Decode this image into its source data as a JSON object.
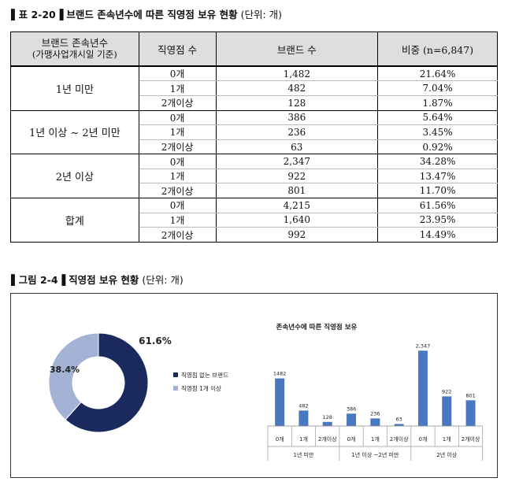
{
  "table_caption": {
    "marker": "▌표 2-20▐",
    "title": "브랜드 존속년수에 따른 직영점 보유 현황",
    "unit": "(단위: 개)"
  },
  "table": {
    "headers": {
      "group_line1": "브랜드 존속년수",
      "group_line2": "(가맹사업개시일 기준)",
      "stores": "직영점 수",
      "brands": "브랜드 수",
      "share": "비중 (n=6,847)"
    },
    "groups": [
      {
        "label": "1년 미만",
        "rows": [
          {
            "stores": "0개",
            "brands": "1,482",
            "share": "21.64%"
          },
          {
            "stores": "1개",
            "brands": "482",
            "share": "7.04%"
          },
          {
            "stores": "2개이상",
            "brands": "128",
            "share": "1.87%"
          }
        ]
      },
      {
        "label": "1년 이상 ~ 2년 미만",
        "rows": [
          {
            "stores": "0개",
            "brands": "386",
            "share": "5.64%"
          },
          {
            "stores": "1개",
            "brands": "236",
            "share": "3.45%"
          },
          {
            "stores": "2개이상",
            "brands": "63",
            "share": "0.92%"
          }
        ]
      },
      {
        "label": "2년 이상",
        "rows": [
          {
            "stores": "0개",
            "brands": "2,347",
            "share": "34.28%"
          },
          {
            "stores": "1개",
            "brands": "922",
            "share": "13.47%"
          },
          {
            "stores": "2개이상",
            "brands": "801",
            "share": "11.70%"
          }
        ]
      },
      {
        "label": "합계",
        "rows": [
          {
            "stores": "0개",
            "brands": "4,215",
            "share": "61.56%"
          },
          {
            "stores": "1개",
            "brands": "1,640",
            "share": "23.95%"
          },
          {
            "stores": "2개이상",
            "brands": "992",
            "share": "14.49%"
          }
        ]
      }
    ]
  },
  "figure_caption": {
    "marker": "▌그림 2-4▐",
    "title": "직영점 보유 현황",
    "unit": "(단위: 개)"
  },
  "chart_data": [
    {
      "type": "pie",
      "variant": "donut",
      "title": "",
      "slices": [
        {
          "label": "직영점 없는 브랜드",
          "value": 61.6,
          "display": "61.6%",
          "color": "#1a2a5e"
        },
        {
          "label": "직영점 1개 이상",
          "value": 38.4,
          "display": "38.4%",
          "color": "#a3b3d6"
        }
      ],
      "legend": "right"
    },
    {
      "type": "bar",
      "title": "존속년수에 따른 직영점 보유",
      "categories": [
        "0개",
        "1개",
        "2개이상",
        "0개",
        "1개",
        "2개이상",
        "0개",
        "1개",
        "2개이상"
      ],
      "groups": [
        "1년 미만",
        "1년 이상 ~2년 미만",
        "2년 이상"
      ],
      "values": [
        1482,
        482,
        128,
        386,
        236,
        63,
        2347,
        922,
        801
      ],
      "data_labels": [
        "1482",
        "482",
        "128",
        "386",
        "236",
        "63",
        "2,347",
        "922",
        "801"
      ],
      "ylim": [
        0,
        2600
      ],
      "grid": false,
      "color": "#4a78c0"
    }
  ]
}
